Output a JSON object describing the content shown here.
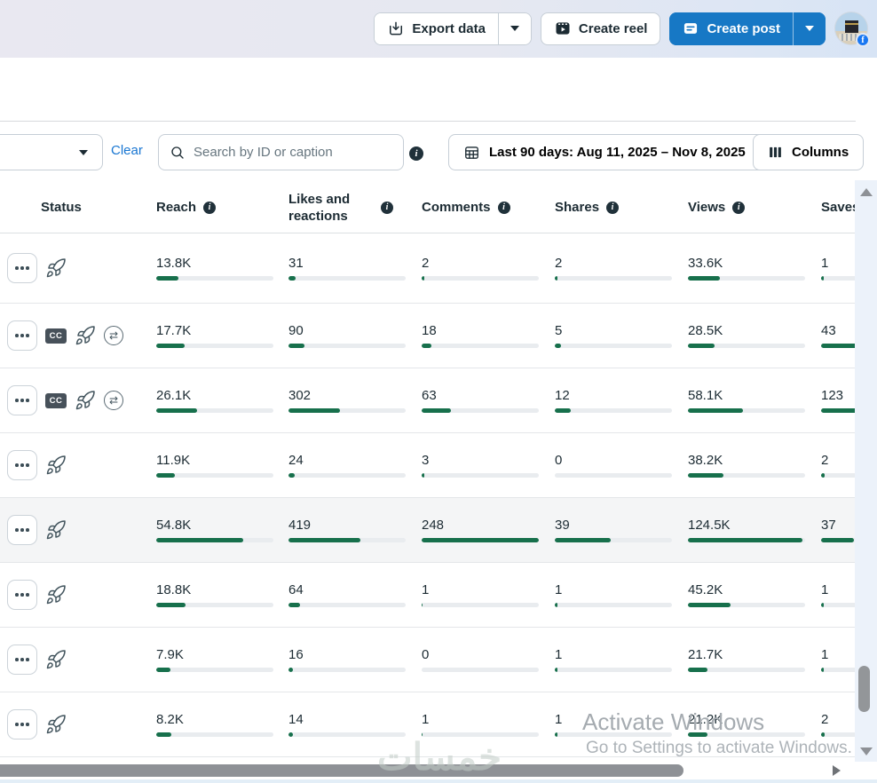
{
  "topbar": {
    "export_label": "Export data",
    "create_reel_label": "Create reel",
    "create_post_label": "Create post"
  },
  "toolbar": {
    "clear_label": "Clear",
    "search_placeholder": "Search by ID or caption",
    "date_range_label": "Last 90 days: Aug 11, 2025 – Nov 8, 2025",
    "columns_label": "Columns"
  },
  "table": {
    "headers": {
      "status": "Status",
      "reach": "Reach",
      "likes": "Likes and reactions",
      "comments": "Comments",
      "shares": "Shares",
      "views": "Views",
      "saves": "Saves"
    },
    "metric_keys": [
      "reach",
      "likes",
      "comments",
      "shares",
      "views",
      "saves"
    ],
    "rows": [
      {
        "highlighted": false,
        "icons": {
          "cc": false,
          "boost": true,
          "crosspost": false
        },
        "metrics": {
          "reach": {
            "v": "13.8K",
            "pct": 19
          },
          "likes": {
            "v": "31",
            "pct": 6
          },
          "comments": {
            "v": "2",
            "pct": 2
          },
          "shares": {
            "v": "2",
            "pct": 2
          },
          "views": {
            "v": "33.6K",
            "pct": 27
          },
          "saves": {
            "v": "1",
            "pct": 2
          }
        }
      },
      {
        "highlighted": false,
        "icons": {
          "cc": true,
          "boost": true,
          "crosspost": true
        },
        "metrics": {
          "reach": {
            "v": "17.7K",
            "pct": 24
          },
          "likes": {
            "v": "90",
            "pct": 14
          },
          "comments": {
            "v": "18",
            "pct": 8
          },
          "shares": {
            "v": "5",
            "pct": 5
          },
          "views": {
            "v": "28.5K",
            "pct": 23
          },
          "saves": {
            "v": "43",
            "pct": 33
          }
        }
      },
      {
        "highlighted": false,
        "icons": {
          "cc": true,
          "boost": true,
          "crosspost": true
        },
        "metrics": {
          "reach": {
            "v": "26.1K",
            "pct": 35
          },
          "likes": {
            "v": "302",
            "pct": 44
          },
          "comments": {
            "v": "63",
            "pct": 25
          },
          "shares": {
            "v": "12",
            "pct": 14
          },
          "views": {
            "v": "58.1K",
            "pct": 47
          },
          "saves": {
            "v": "123",
            "pct": 85
          }
        }
      },
      {
        "highlighted": false,
        "icons": {
          "cc": false,
          "boost": true,
          "crosspost": false
        },
        "metrics": {
          "reach": {
            "v": "11.9K",
            "pct": 16
          },
          "likes": {
            "v": "24",
            "pct": 5
          },
          "comments": {
            "v": "3",
            "pct": 2
          },
          "shares": {
            "v": "0",
            "pct": 0
          },
          "views": {
            "v": "38.2K",
            "pct": 30
          },
          "saves": {
            "v": "2",
            "pct": 3
          }
        }
      },
      {
        "highlighted": true,
        "icons": {
          "cc": false,
          "boost": true,
          "crosspost": false
        },
        "metrics": {
          "reach": {
            "v": "54.8K",
            "pct": 74
          },
          "likes": {
            "v": "419",
            "pct": 61
          },
          "comments": {
            "v": "248",
            "pct": 100
          },
          "shares": {
            "v": "39",
            "pct": 48
          },
          "views": {
            "v": "124.5K",
            "pct": 98
          },
          "saves": {
            "v": "37",
            "pct": 28
          }
        }
      },
      {
        "highlighted": false,
        "icons": {
          "cc": false,
          "boost": true,
          "crosspost": false
        },
        "metrics": {
          "reach": {
            "v": "18.8K",
            "pct": 25
          },
          "likes": {
            "v": "64",
            "pct": 10
          },
          "comments": {
            "v": "1",
            "pct": 1
          },
          "shares": {
            "v": "1",
            "pct": 2
          },
          "views": {
            "v": "45.2K",
            "pct": 36
          },
          "saves": {
            "v": "1",
            "pct": 2
          }
        }
      },
      {
        "highlighted": false,
        "icons": {
          "cc": false,
          "boost": true,
          "crosspost": false
        },
        "metrics": {
          "reach": {
            "v": "7.9K",
            "pct": 12
          },
          "likes": {
            "v": "16",
            "pct": 4
          },
          "comments": {
            "v": "0",
            "pct": 0
          },
          "shares": {
            "v": "1",
            "pct": 2
          },
          "views": {
            "v": "21.7K",
            "pct": 17
          },
          "saves": {
            "v": "1",
            "pct": 2
          }
        }
      },
      {
        "highlighted": false,
        "icons": {
          "cc": false,
          "boost": true,
          "crosspost": false
        },
        "metrics": {
          "reach": {
            "v": "8.2K",
            "pct": 13
          },
          "likes": {
            "v": "14",
            "pct": 4
          },
          "comments": {
            "v": "1",
            "pct": 1
          },
          "shares": {
            "v": "1",
            "pct": 2
          },
          "views": {
            "v": "21.2K",
            "pct": 17
          },
          "saves": {
            "v": "2",
            "pct": 3
          }
        }
      }
    ]
  },
  "watermarks": {
    "site": "خمسات",
    "activate_line1": "Activate Windows",
    "activate_line2": "Go to Settings to activate Windows."
  },
  "colors": {
    "accent_blue": "#1778c5",
    "link_blue": "#1876d2",
    "bar_green": "#17704c",
    "text_dark": "#1c2b33",
    "highlight_row": "#f4f5f6"
  }
}
